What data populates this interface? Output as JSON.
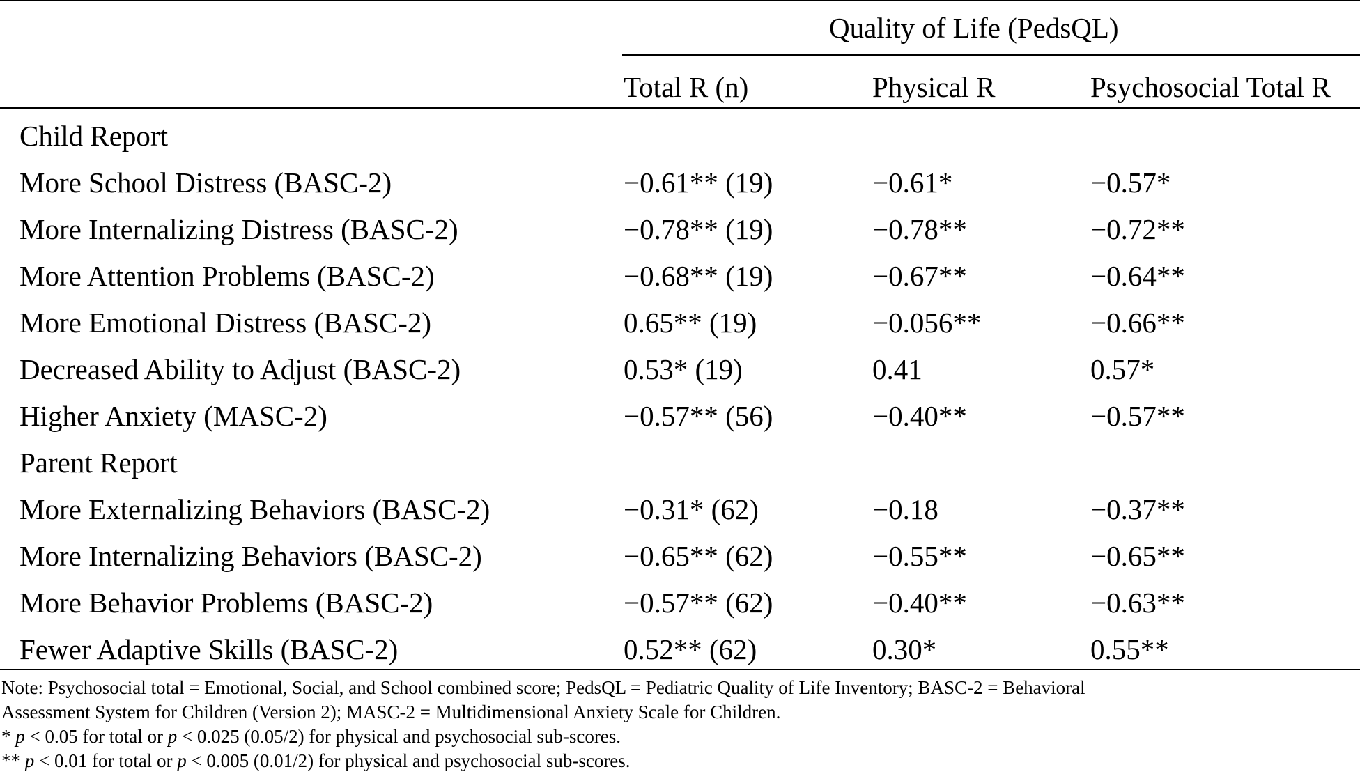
{
  "table": {
    "span_header": "Quality of Life (PedsQL)",
    "columns": [
      "",
      "Total R (n)",
      "Physical R",
      "Psychosocial Total R"
    ],
    "sections": [
      {
        "title": "Child Report",
        "rows": [
          [
            "More School Distress (BASC-2)",
            "−0.61** (19)",
            "−0.61*",
            "−0.57*"
          ],
          [
            "More Internalizing Distress (BASC-2)",
            "−0.78** (19)",
            "−0.78**",
            "−0.72**"
          ],
          [
            "More Attention Problems (BASC-2)",
            "−0.68** (19)",
            "−0.67**",
            "−0.64**"
          ],
          [
            "More Emotional Distress (BASC-2)",
            "0.65** (19)",
            "−0.056**",
            "−0.66**"
          ],
          [
            "Decreased Ability to Adjust (BASC-2)",
            "0.53* (19)",
            "0.41",
            "0.57*"
          ],
          [
            "Higher Anxiety (MASC-2)",
            "−0.57** (56)",
            "−0.40**",
            "−0.57**"
          ]
        ]
      },
      {
        "title": "Parent Report",
        "rows": [
          [
            "More Externalizing Behaviors (BASC-2)",
            "−0.31* (62)",
            "−0.18",
            "−0.37**"
          ],
          [
            "More Internalizing Behaviors (BASC-2)",
            "−0.65** (62)",
            "−0.55**",
            "−0.65**"
          ],
          [
            "More Behavior Problems (BASC-2)",
            "−0.57** (62)",
            "−0.40**",
            "−0.63**"
          ],
          [
            "Fewer Adaptive Skills (BASC-2)",
            "0.52** (62)",
            "0.30*",
            "0.55**"
          ]
        ]
      }
    ]
  },
  "notes": {
    "line1": "Note: Psychosocial total = Emotional, Social, and School combined score; PedsQL = Pediatric Quality of Life Inventory; BASC-2 = Behavioral",
    "line2": "Assessment System for Children (Version 2); MASC-2 = Multidimensional Anxiety Scale for Children.",
    "fn1": {
      "mark": "* ",
      "p1": "p",
      "t1": " < 0.05 for total or ",
      "p2": "p",
      "t2": " < 0.025 (0.05/2) for physical and psychosocial sub-scores."
    },
    "fn2": {
      "mark": "** ",
      "p1": "p",
      "t1": " < 0.01 for total or ",
      "p2": "p",
      "t2": " < 0.005 (0.01/2) for physical and psychosocial sub-scores."
    }
  }
}
